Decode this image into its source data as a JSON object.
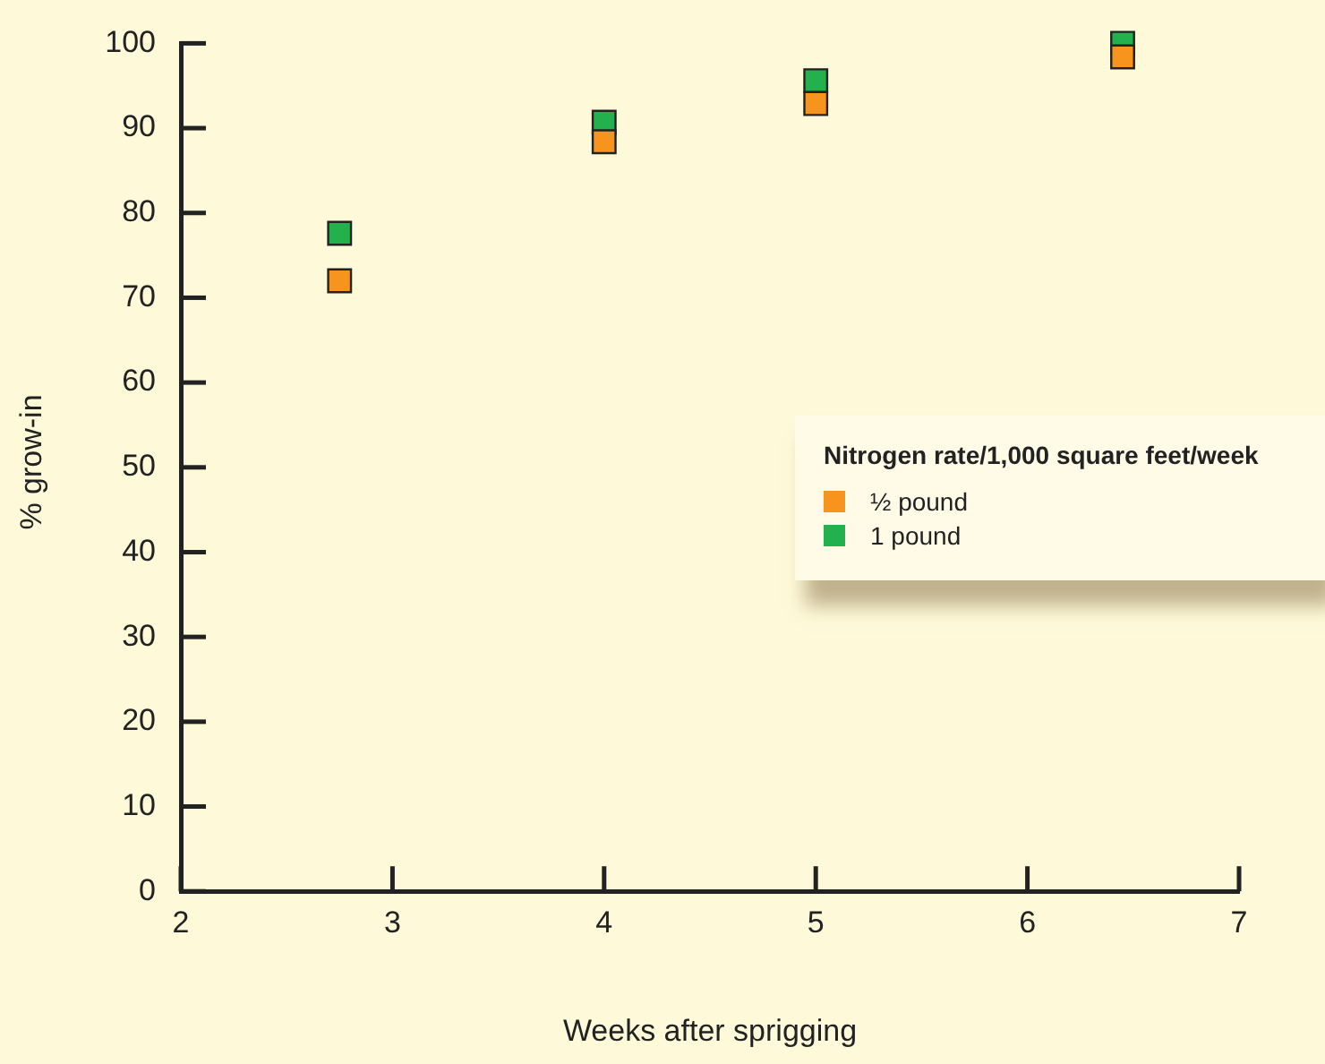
{
  "chart_data": {
    "type": "scatter",
    "xlabel": "Weeks after sprigging",
    "ylabel": "% grow-in",
    "legend_title": "Nitrogen rate/1,000 square feet/week",
    "series": [
      {
        "name": "½ pound",
        "color": "#f7941d",
        "x": [
          2.75,
          4,
          5,
          6.45
        ],
        "values": [
          72,
          88.4,
          92.9,
          98.4
        ]
      },
      {
        "name": "1 pound",
        "color": "#22b14c",
        "x": [
          2.75,
          4,
          5,
          6.45
        ],
        "values": [
          77.6,
          90.7,
          95.6,
          100
        ]
      }
    ],
    "xlim": [
      2,
      7
    ],
    "xticks": [
      2,
      3,
      4,
      5,
      6,
      7
    ],
    "ylim": [
      0,
      100
    ],
    "yticks": [
      0,
      10,
      20,
      30,
      40,
      50,
      60,
      70,
      80,
      90,
      100
    ],
    "grid": false,
    "legend": "right",
    "marker": "square"
  }
}
